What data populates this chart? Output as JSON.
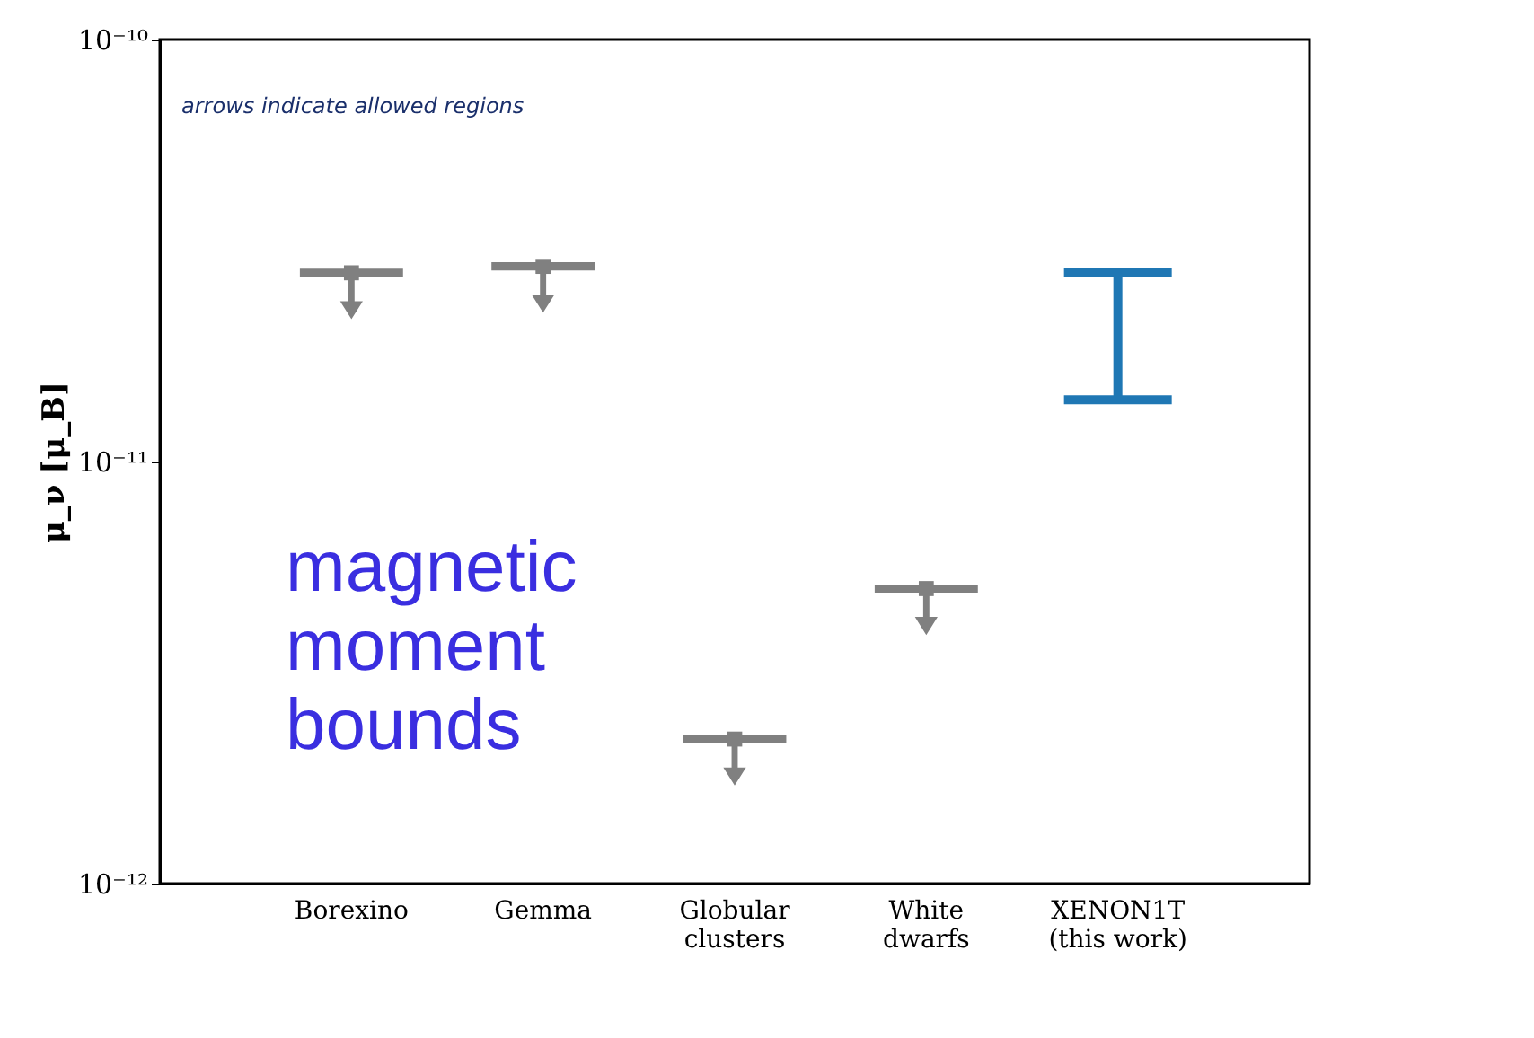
{
  "chart_data": {
    "type": "scatter",
    "ylabel": "μ_ν [μ_B]",
    "categories": [
      "Borexino",
      "Gemma",
      "Globular\nclusters",
      "White\ndwarfs",
      "XENON1T\n(this work)"
    ],
    "log": "y",
    "ylim": [
      1e-12,
      1e-10
    ],
    "yticks": [
      {
        "value": 1e-12,
        "label": "10⁻¹²"
      },
      {
        "value": 1e-11,
        "label": "10⁻¹¹"
      },
      {
        "value": 1e-10,
        "label": "10⁻¹⁰"
      }
    ],
    "grid": false,
    "legend": false,
    "marker": "square",
    "annotations": [
      "arrows indicate allowed regions",
      "magnetic moment bounds"
    ],
    "series": [
      {
        "color": "#808080",
        "values": [
          2.8e-11,
          2.9e-11,
          2.2e-12,
          5e-12,
          null
        ]
      },
      {
        "type": "bar",
        "color": "#1f77b4",
        "base": [
          null,
          null,
          null,
          null,
          1.4e-11
        ],
        "values": [
          null,
          null,
          null,
          null,
          1.4e-11
        ]
      }
    ]
  }
}
